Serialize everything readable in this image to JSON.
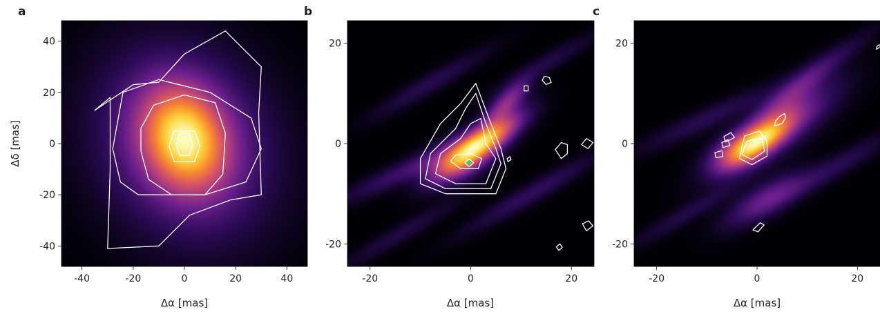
{
  "chart_data": [
    {
      "type": "heatmap",
      "panel_label": "a",
      "xlabel": "Δα [mas]",
      "ylabel": "Δδ [mas]",
      "xlim": [
        -48,
        48
      ],
      "ylim": [
        -48,
        48
      ],
      "xticks": [
        -40,
        -20,
        0,
        20,
        40
      ],
      "yticks": [
        -40,
        -20,
        0,
        20,
        40
      ],
      "colormap": [
        "#000004",
        "#2b0b57",
        "#6a1f8c",
        "#a83a82",
        "#dd5a5c",
        "#f98e2d",
        "#fcd23a",
        "#fcfdbf"
      ],
      "contour_color": "#ffffff",
      "blobs": [
        {
          "cx": 0,
          "cy": 2,
          "sx": 10,
          "sy": 13,
          "theta": 20,
          "amp": 1.0
        },
        {
          "cx": 0,
          "cy": 0,
          "sx": 20,
          "sy": 24,
          "theta": 30,
          "amp": 0.45
        }
      ],
      "contours": [
        [
          [
            -3.2,
            -0.4
          ],
          [
            -1.8,
            -4.7
          ],
          [
            1.8,
            -4.7
          ],
          [
            3.2,
            -0.4
          ],
          [
            1.8,
            3.9
          ],
          [
            -1.8,
            3.9
          ]
        ],
        [
          [
            -6,
            -1
          ],
          [
            -4,
            -7
          ],
          [
            4,
            -7
          ],
          [
            6,
            -1
          ],
          [
            4,
            5
          ],
          [
            -4,
            5
          ]
        ],
        [
          [
            -17,
            -3
          ],
          [
            -14,
            -14
          ],
          [
            -5,
            -20
          ],
          [
            8,
            -20
          ],
          [
            15,
            -12
          ],
          [
            16,
            4
          ],
          [
            12,
            16
          ],
          [
            0,
            19
          ],
          [
            -12,
            15
          ],
          [
            -17,
            6
          ]
        ],
        [
          [
            -28,
            -2
          ],
          [
            -25,
            -15
          ],
          [
            -18,
            -20
          ],
          [
            8,
            -20
          ],
          [
            24,
            -15
          ],
          [
            30,
            -2
          ],
          [
            26,
            10
          ],
          [
            10,
            20
          ],
          [
            -10,
            25
          ],
          [
            -24,
            20
          ]
        ],
        [
          [
            -29,
            18
          ],
          [
            -29,
            -10
          ],
          [
            -30,
            -41
          ],
          [
            -10,
            -40
          ],
          [
            2,
            -28
          ],
          [
            18,
            -22
          ],
          [
            30,
            -20
          ],
          [
            29,
            12
          ],
          [
            30,
            30
          ],
          [
            16,
            44
          ],
          [
            0,
            35
          ],
          [
            -10,
            24
          ],
          [
            -20,
            23
          ],
          [
            -35,
            13
          ]
        ]
      ]
    },
    {
      "type": "heatmap",
      "panel_label": "b",
      "xlabel": "Δα [mas]",
      "ylabel": "",
      "xlim": [
        -24.5,
        24.5
      ],
      "ylim": [
        -24.5,
        24.5
      ],
      "xticks": [
        -20,
        0,
        20
      ],
      "yticks": [
        -20,
        0,
        20
      ],
      "colormap": [
        "#000004",
        "#2b0b57",
        "#6a1f8c",
        "#a83a82",
        "#dd5a5c",
        "#f98e2d",
        "#fcd23a",
        "#fcfdbf"
      ],
      "contour_color": "#ffffff",
      "marker_color": "#39d353",
      "marker": [
        -0.3,
        -3.8
      ],
      "blobs": [
        {
          "cx": 2,
          "cy": 0,
          "sx": 6,
          "sy": 1.8,
          "theta": 35,
          "amp": 1.0
        },
        {
          "cx": -2,
          "cy": -3,
          "sx": 5,
          "sy": 2.5,
          "theta": 30,
          "amp": 0.45
        },
        {
          "cx": 7,
          "cy": 8,
          "sx": 4,
          "sy": 1.4,
          "theta": 45,
          "amp": 0.4
        },
        {
          "cx": -12,
          "cy": -5,
          "sx": 10,
          "sy": 1.4,
          "theta": 25,
          "amp": 0.18
        },
        {
          "cx": 12,
          "cy": -10,
          "sx": 10,
          "sy": 1.3,
          "theta": 30,
          "amp": 0.15
        },
        {
          "cx": -8,
          "cy": 12,
          "sx": 9,
          "sy": 1.3,
          "theta": 30,
          "amp": 0.12
        },
        {
          "cx": 15,
          "cy": 16,
          "sx": 8,
          "sy": 1.2,
          "theta": 30,
          "amp": 0.1
        },
        {
          "cx": -14,
          "cy": -18,
          "sx": 9,
          "sy": 1.2,
          "theta": 30,
          "amp": 0.1
        }
      ],
      "contours": [
        [
          [
            -1.2,
            -3.8
          ],
          [
            -0.3,
            -4.6
          ],
          [
            0.6,
            -3.8
          ],
          [
            -0.3,
            -3.1
          ]
        ],
        [
          [
            -4,
            -3.5
          ],
          [
            -2,
            -5
          ],
          [
            1.5,
            -5
          ],
          [
            2.2,
            -3
          ],
          [
            0,
            -2
          ],
          [
            -3,
            -2.3
          ]
        ],
        [
          [
            -7,
            -6
          ],
          [
            -3,
            -8
          ],
          [
            3,
            -8
          ],
          [
            5,
            -3
          ],
          [
            3,
            0
          ],
          [
            2,
            5
          ],
          [
            0,
            4
          ],
          [
            -2,
            1
          ],
          [
            -6,
            -2
          ]
        ],
        [
          [
            -9,
            -7
          ],
          [
            -5,
            -9
          ],
          [
            4,
            -9
          ],
          [
            6,
            -4
          ],
          [
            5,
            -1
          ],
          [
            3,
            4
          ],
          [
            1,
            10
          ],
          [
            -1,
            7
          ],
          [
            -3,
            3
          ],
          [
            -8,
            -2
          ]
        ],
        [
          [
            -10,
            -8
          ],
          [
            -5,
            -10
          ],
          [
            5,
            -10
          ],
          [
            7,
            -5
          ],
          [
            6,
            -1
          ],
          [
            4,
            4
          ],
          [
            1,
            12
          ],
          [
            -2,
            8
          ],
          [
            -6,
            4
          ],
          [
            -10,
            -3
          ]
        ],
        [
          [
            14.2,
            12.6
          ],
          [
            15.0,
            11.8
          ],
          [
            16.0,
            12.2
          ],
          [
            15.6,
            13.2
          ],
          [
            14.6,
            13.4
          ]
        ],
        [
          [
            22,
            -0.2
          ],
          [
            23.3,
            -1.0
          ],
          [
            24.3,
            0.2
          ],
          [
            23.0,
            1.0
          ]
        ],
        [
          [
            18.0,
            -3.0
          ],
          [
            19.2,
            -2.0
          ],
          [
            19.2,
            -0.2
          ],
          [
            18.0,
            0.2
          ],
          [
            16.8,
            -1.2
          ]
        ],
        [
          [
            10.6,
            10.5
          ],
          [
            11.4,
            10.5
          ],
          [
            11.4,
            11.5
          ],
          [
            10.6,
            11.5
          ]
        ],
        [
          [
            22.2,
            -16.0
          ],
          [
            23.4,
            -15.4
          ],
          [
            24.3,
            -16.4
          ],
          [
            23.0,
            -17.4
          ]
        ],
        [
          [
            17.0,
            -20.6
          ],
          [
            17.7,
            -20.0
          ],
          [
            18.2,
            -20.7
          ],
          [
            17.5,
            -21.3
          ]
        ],
        [
          [
            7.2,
            -3.0
          ],
          [
            7.8,
            -2.6
          ],
          [
            8.0,
            -3.2
          ],
          [
            7.4,
            -3.6
          ]
        ]
      ]
    },
    {
      "type": "heatmap",
      "panel_label": "c",
      "xlabel": "Δα [mas]",
      "ylabel": "",
      "xlim": [
        -24.5,
        24.5
      ],
      "ylim": [
        -24.5,
        24.5
      ],
      "xticks": [
        -20,
        0,
        20
      ],
      "yticks": [
        -20,
        0,
        20
      ],
      "colormap": [
        "#000004",
        "#2b0b57",
        "#6a1f8c",
        "#a83a82",
        "#dd5a5c",
        "#f98e2d",
        "#fcd23a",
        "#fcfdbf"
      ],
      "contour_color": "#ffffff",
      "blobs": [
        {
          "cx": 0.5,
          "cy": 0.5,
          "sx": 5,
          "sy": 1.8,
          "theta": 35,
          "amp": 1.0
        },
        {
          "cx": 4,
          "cy": 3,
          "sx": 9,
          "sy": 2.8,
          "theta": 35,
          "amp": 0.45
        },
        {
          "cx": -4,
          "cy": -1,
          "sx": 4,
          "sy": 2,
          "theta": 30,
          "amp": 0.4
        },
        {
          "cx": 2,
          "cy": -11,
          "sx": 6,
          "sy": 2,
          "theta": 30,
          "amp": 0.35
        },
        {
          "cx": 6,
          "cy": 9,
          "sx": 7,
          "sy": 1.8,
          "theta": 40,
          "amp": 0.3
        },
        {
          "cx": -10,
          "cy": 5,
          "sx": 10,
          "sy": 1.4,
          "theta": 25,
          "amp": 0.15
        },
        {
          "cx": 15,
          "cy": -5,
          "sx": 10,
          "sy": 1.4,
          "theta": 30,
          "amp": 0.15
        },
        {
          "cx": -14,
          "cy": -14,
          "sx": 9,
          "sy": 1.2,
          "theta": 30,
          "amp": 0.12
        },
        {
          "cx": 14,
          "cy": 16,
          "sx": 8,
          "sy": 1.3,
          "theta": 35,
          "amp": 0.12
        }
      ],
      "contours": [
        [
          [
            -3.5,
            -3.0
          ],
          [
            -1.0,
            -4.2
          ],
          [
            2.0,
            -2.5
          ],
          [
            2.0,
            0.5
          ],
          [
            0.5,
            2.5
          ],
          [
            -2.5,
            1.5
          ]
        ],
        [
          [
            -3,
            -2.2
          ],
          [
            -1,
            -3.2
          ],
          [
            1.5,
            -1.5
          ],
          [
            1,
            1
          ],
          [
            -2,
            0.5
          ]
        ],
        [
          [
            -8.2,
            -2.8
          ],
          [
            -6.8,
            -2.6
          ],
          [
            -7.0,
            -1.4
          ],
          [
            -8.4,
            -1.8
          ]
        ],
        [
          [
            -6.8,
            -0.8
          ],
          [
            -5.4,
            -0.4
          ],
          [
            -5.8,
            0.8
          ],
          [
            -7.0,
            0.2
          ]
        ],
        [
          [
            -6.3,
            0.3
          ],
          [
            -4.5,
            1.2
          ],
          [
            -5.2,
            2.2
          ],
          [
            -6.6,
            1.4
          ]
        ],
        [
          [
            3.5,
            3.5
          ],
          [
            5.0,
            4.0
          ],
          [
            5.7,
            5.2
          ],
          [
            5.5,
            6.0
          ],
          [
            4.5,
            5.4
          ],
          [
            3.7,
            4.5
          ]
        ],
        [
          [
            -0.8,
            -17.2
          ],
          [
            0.6,
            -15.8
          ],
          [
            1.4,
            -16.2
          ],
          [
            0.2,
            -17.6
          ]
        ],
        [
          [
            23.8,
            18.8
          ],
          [
            24.4,
            19.2
          ],
          [
            24.5,
            19.8
          ],
          [
            23.9,
            19.4
          ]
        ]
      ]
    }
  ]
}
